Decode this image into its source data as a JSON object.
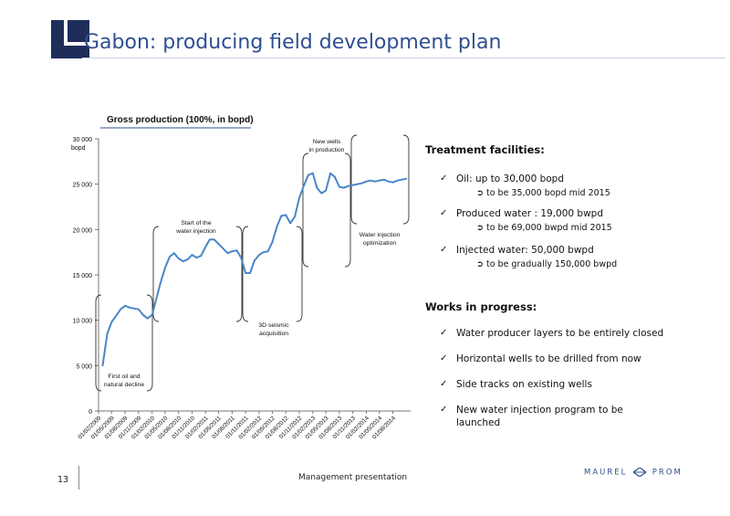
{
  "slide": {
    "title": "Gabon: producing field development plan",
    "page_number": "13",
    "footer_text": "Management presentation",
    "logo_text_left": "MAUREL",
    "logo_text_right": "PROM",
    "accent_color": "#2f4f8f",
    "corner_color": "#1f2d5a"
  },
  "chart_data": {
    "type": "line",
    "title": "Gross production (100%, in bopd)",
    "ylabel": "bopd",
    "ylim": [
      0,
      30000
    ],
    "yticks": [
      0,
      5000,
      10000,
      15000,
      20000,
      25000,
      30000
    ],
    "ytick_labels": [
      "0",
      "5 000",
      "10 000",
      "15 000",
      "20 000",
      "25 000",
      "30 000"
    ],
    "xlim": [
      "2009-02-01",
      "2014-11-30"
    ],
    "xtick_labels": [
      "01/02/2009",
      "01/05/2009",
      "01/08/2009",
      "01/11/2009",
      "01/02/2010",
      "01/05/2010",
      "01/08/2010",
      "01/11/2010",
      "01/02/2011",
      "01/05/2011",
      "01/08/2011",
      "01/11/2011",
      "01/02/2012",
      "01/05/2012",
      "01/08/2012",
      "01/11/2012",
      "01/02/2013",
      "01/05/2013",
      "01/08/2013",
      "01/11/2013",
      "01/02/2014",
      "01/05/2014",
      "01/08/2014"
    ],
    "line_color": "#4a86c8",
    "series": [
      {
        "x": [
          "2009-03-01",
          "2009-04-01",
          "2009-05-01",
          "2009-06-01",
          "2009-07-01",
          "2009-08-01",
          "2009-09-01",
          "2009-10-01",
          "2009-11-01",
          "2009-12-01",
          "2010-01-01",
          "2010-02-01",
          "2010-03-01",
          "2010-04-01",
          "2010-05-01",
          "2010-06-01",
          "2010-07-01",
          "2010-08-01",
          "2010-09-01",
          "2010-10-01",
          "2010-11-01",
          "2010-12-01",
          "2011-01-01",
          "2011-02-01",
          "2011-03-01",
          "2011-04-01",
          "2011-05-01",
          "2011-06-01",
          "2011-07-01",
          "2011-08-01",
          "2011-09-01",
          "2011-10-01",
          "2011-11-01",
          "2011-12-01",
          "2012-01-01",
          "2012-02-01",
          "2012-03-01",
          "2012-04-01",
          "2012-05-01",
          "2012-06-01",
          "2012-07-01",
          "2012-08-01",
          "2012-09-01",
          "2012-10-01",
          "2012-11-01",
          "2012-12-01",
          "2013-01-01",
          "2013-02-01",
          "2013-03-01",
          "2013-04-01",
          "2013-05-01",
          "2013-06-01",
          "2013-07-01",
          "2013-08-01",
          "2013-09-01",
          "2013-10-01",
          "2013-11-01",
          "2013-12-01",
          "2014-01-01",
          "2014-02-01",
          "2014-03-01",
          "2014-04-01",
          "2014-05-01",
          "2014-06-01",
          "2014-07-01",
          "2014-08-01",
          "2014-09-01",
          "2014-10-01",
          "2014-11-01"
        ],
        "values": [
          5000,
          8500,
          9800,
          10500,
          11200,
          11600,
          11400,
          11300,
          11200,
          10600,
          10200,
          10600,
          12300,
          14200,
          15800,
          17000,
          17400,
          16800,
          16500,
          16700,
          17200,
          16900,
          17100,
          18100,
          18900,
          18900,
          18400,
          17900,
          17400,
          17600,
          17700,
          16900,
          15200,
          15200,
          16600,
          17200,
          17500,
          17600,
          18600,
          20300,
          21500,
          21600,
          20700,
          21400,
          23500,
          24800,
          26000,
          26200,
          24600,
          24000,
          24300,
          26200,
          25800,
          24700,
          24600,
          24800,
          24900,
          25000,
          25100,
          25300,
          25400,
          25300,
          25400,
          25500,
          25300,
          25200,
          25400,
          25500,
          25600
        ]
      }
    ],
    "annotations": [
      {
        "label": "First oil and natural decline",
        "lines": [
          "First oil and",
          "natural decline"
        ]
      },
      {
        "label": "Start of the water injection",
        "lines": [
          "Start of the",
          "water injection"
        ]
      },
      {
        "label": "3D seismic acquisition",
        "lines": [
          "3D seismic",
          "acquisition"
        ]
      },
      {
        "label": "New wells in production",
        "lines": [
          "New wells",
          "in production"
        ]
      },
      {
        "label": "Water injection optimization",
        "lines": [
          "Water injection",
          "optimization"
        ]
      }
    ]
  },
  "treatment": {
    "heading": "Treatment facilities:",
    "items": [
      {
        "text": "Oil: up to 30,000 bopd",
        "sub": "to be 35,000 bopd mid 2015"
      },
      {
        "text": "Produced water : 19,000 bwpd",
        "sub": "to be 69,000 bwpd mid 2015"
      },
      {
        "text": "Injected water: 50,000 bwpd",
        "sub": "to be gradually 150,000 bwpd"
      }
    ]
  },
  "works": {
    "heading": "Works in progress:",
    "items": [
      {
        "lines": [
          "Water producer layers to be entirely closed"
        ]
      },
      {
        "lines": [
          "Horizontal wells to be drilled from now"
        ]
      },
      {
        "lines": [
          "Side tracks on existing wells"
        ]
      },
      {
        "lines": [
          "New water injection program to be",
          "launched"
        ]
      }
    ]
  },
  "icons": {
    "check": "check-icon",
    "arrow": "circled-arrow-icon"
  }
}
